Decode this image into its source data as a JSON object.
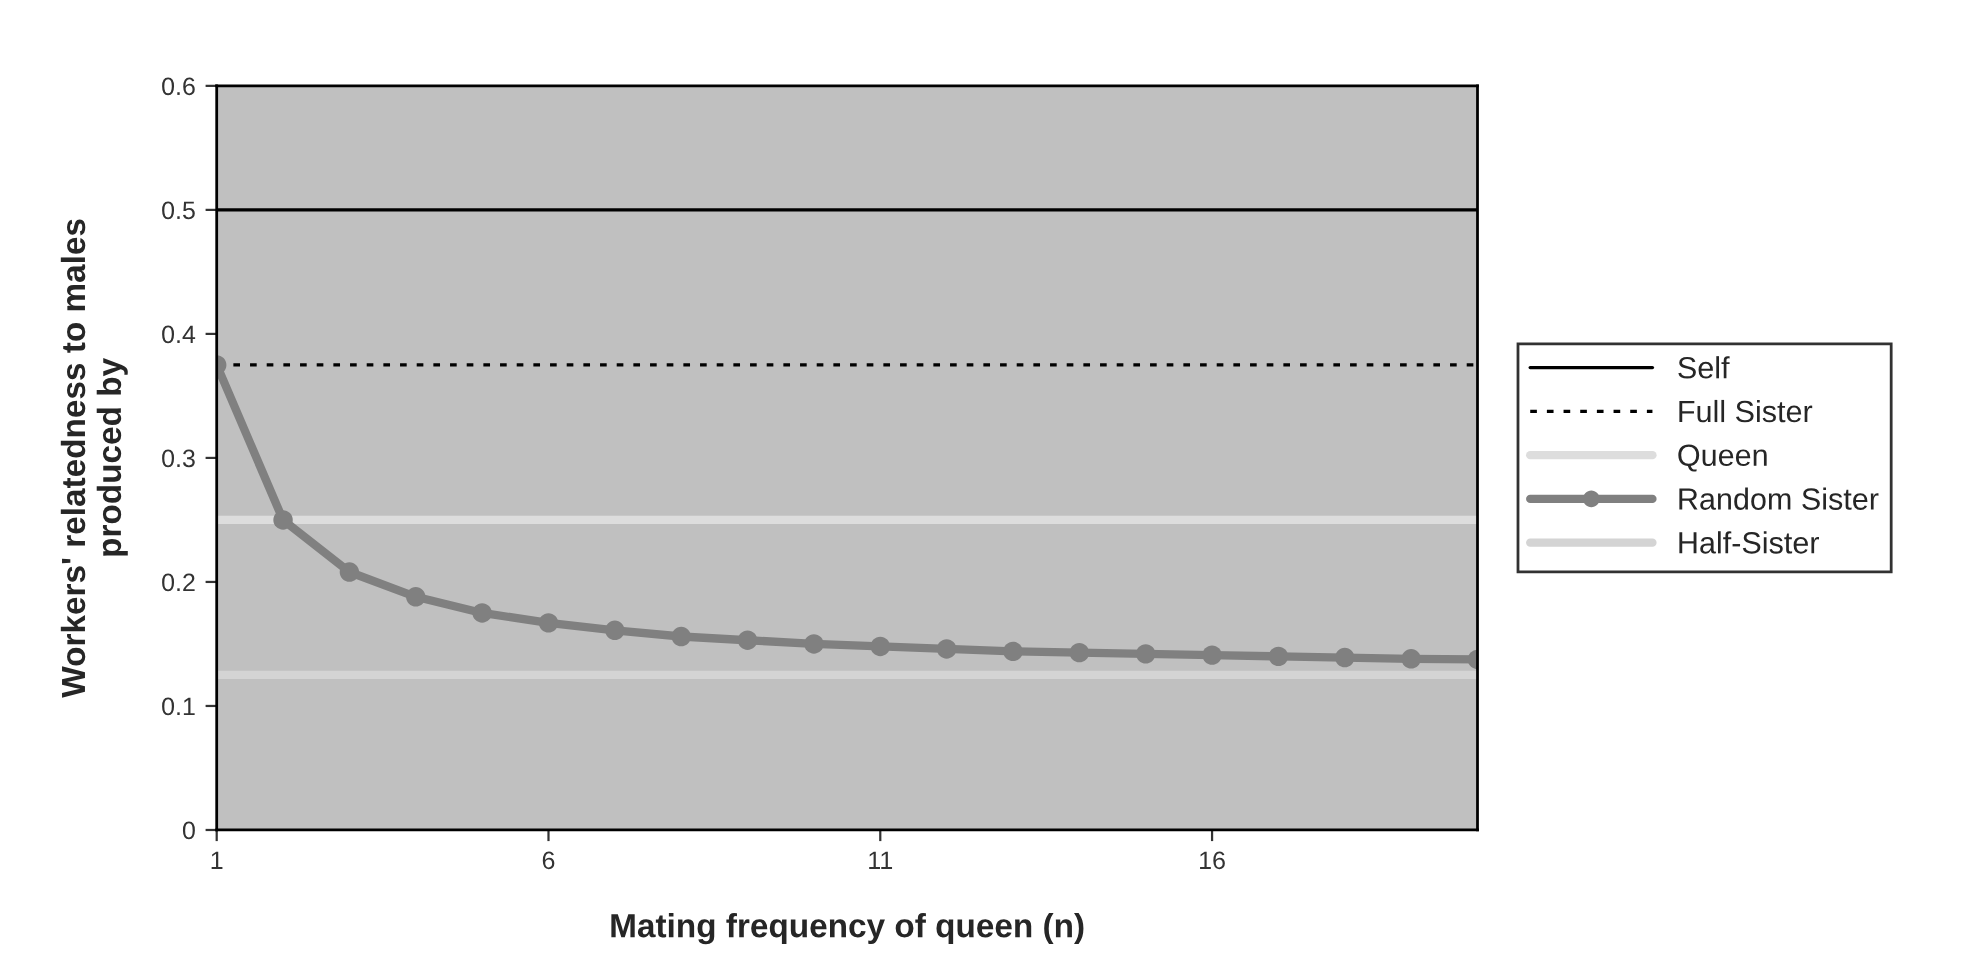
{
  "chart_data": {
    "type": "line",
    "xlabel": "Mating frequency of queen (n)",
    "ylabel": "Workers' relatedness to males\nproduced by",
    "xlim": [
      1,
      20
    ],
    "xticks": [
      1,
      6,
      11,
      16
    ],
    "ylim": [
      0,
      0.6
    ],
    "yticks": [
      0,
      0.1,
      0.2,
      0.3,
      0.4,
      0.5,
      0.6
    ],
    "grid": false,
    "legend": "right",
    "series": [
      {
        "name": "Self",
        "color": "#000000",
        "x": [
          1,
          20
        ],
        "values": [
          0.5,
          0.5
        ],
        "line_style": "solid",
        "marker": "none"
      },
      {
        "name": "Full Sister",
        "color": "#000000",
        "x": [
          1,
          20
        ],
        "values": [
          0.375,
          0.375
        ],
        "line_style": "dotted",
        "marker": "none"
      },
      {
        "name": "Queen",
        "color": "#dddddd",
        "x": [
          1,
          20
        ],
        "values": [
          0.25,
          0.25
        ],
        "line_style": "solid",
        "marker": "none"
      },
      {
        "name": "Random Sister",
        "color": "#808080",
        "x": [
          1,
          2,
          3,
          4,
          5,
          6,
          7,
          8,
          9,
          10,
          11,
          12,
          13,
          14,
          15,
          16,
          17,
          18,
          19,
          20
        ],
        "values": [
          0.375,
          0.25,
          0.208,
          0.188,
          0.175,
          0.167,
          0.161,
          0.156,
          0.153,
          0.15,
          0.148,
          0.146,
          0.144,
          0.143,
          0.142,
          0.141,
          0.14,
          0.139,
          0.138,
          0.1375
        ],
        "line_style": "solid",
        "marker": "circle"
      },
      {
        "name": "Half-Sister",
        "color": "#d4d4d4",
        "x": [
          1,
          20
        ],
        "values": [
          0.125,
          0.125
        ],
        "line_style": "solid",
        "marker": "none"
      }
    ]
  }
}
